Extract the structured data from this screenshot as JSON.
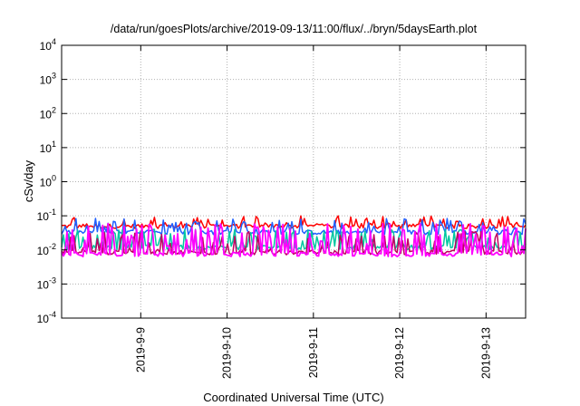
{
  "chart_data": {
    "type": "line",
    "title": "/data/run/goesPlots/archive/2019-09-13/11:00/flux/../bryn/5daysEarth.plot",
    "xlabel": "Coordinated Universal Time (UTC)",
    "ylabel": "cSv/day",
    "yscale": "log",
    "ylim": [
      0.0001,
      10000
    ],
    "xlim": [
      "2019-09-08 02:00",
      "2019-09-13 11:00"
    ],
    "grid": true,
    "yticks": [
      {
        "base": "10",
        "exp": "-4",
        "value": 0.0001
      },
      {
        "base": "10",
        "exp": "-3",
        "value": 0.001
      },
      {
        "base": "10",
        "exp": "-2",
        "value": 0.01
      },
      {
        "base": "10",
        "exp": "-1",
        "value": 0.1
      },
      {
        "base": "10",
        "exp": "0",
        "value": 1
      },
      {
        "base": "10",
        "exp": "1",
        "value": 10
      },
      {
        "base": "10",
        "exp": "2",
        "value": 100
      },
      {
        "base": "10",
        "exp": "3",
        "value": 1000
      },
      {
        "base": "10",
        "exp": "4",
        "value": 10000
      }
    ],
    "xticks": [
      {
        "label": "2019-9-9",
        "value": "2019-09-09 00:00"
      },
      {
        "label": "2019-9-10",
        "value": "2019-09-10 00:00"
      },
      {
        "label": "2019-9-11",
        "value": "2019-09-11 00:00"
      },
      {
        "label": "2019-9-12",
        "value": "2019-09-12 00:00"
      },
      {
        "label": "2019-9-13",
        "value": "2019-09-13 00:00"
      }
    ],
    "series": [
      {
        "color": "#ff0000",
        "baseline": 0.05,
        "spike_max": 0.1,
        "spike_rate": 0.25
      },
      {
        "color": "#2060ff",
        "baseline": 0.033,
        "spike_max": 0.085,
        "spike_rate": 0.3
      },
      {
        "color": "#00c8a0",
        "baseline": 0.012,
        "spike_max": 0.04,
        "spike_rate": 0.35
      },
      {
        "color": "#c00060",
        "baseline": 0.0085,
        "spike_max": 0.035,
        "spike_rate": 0.35
      },
      {
        "color": "#ff00ff",
        "baseline": 0.0075,
        "spike_max": 0.06,
        "spike_rate": 0.4
      }
    ]
  }
}
